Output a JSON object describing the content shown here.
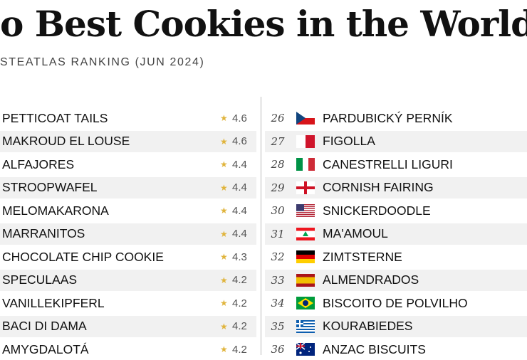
{
  "header": {
    "title": "o Best Cookies in the World",
    "subtitle": "STEATLAS RANKING (JUN 2024)"
  },
  "left": [
    {
      "name": "PETTICOAT TAILS",
      "rating": 4.6
    },
    {
      "name": "MAKROUD EL LOUSE",
      "rating": 4.6
    },
    {
      "name": "ALFAJORES",
      "rating": 4.4
    },
    {
      "name": "STROOPWAFEL",
      "rating": 4.4
    },
    {
      "name": "MELOMAKARONA",
      "rating": 4.4
    },
    {
      "name": "MARRANITOS",
      "rating": 4.4
    },
    {
      "name": "CHOCOLATE CHIP COOKIE",
      "rating": 4.3
    },
    {
      "name": "SPECULAAS",
      "rating": 4.2
    },
    {
      "name": "VANILLEKIPFERL",
      "rating": 4.2
    },
    {
      "name": "BACI DI DAMA",
      "rating": 4.2
    },
    {
      "name": "AMYGDALOTÁ",
      "rating": 4.2
    }
  ],
  "right": [
    {
      "rank": 26,
      "name": "PARDUBICKÝ PERNÍK"
    },
    {
      "rank": 27,
      "name": "FIGOLLA"
    },
    {
      "rank": 28,
      "name": "CANESTRELLI LIGURI"
    },
    {
      "rank": 29,
      "name": "CORNISH FAIRING"
    },
    {
      "rank": 30,
      "name": "SNICKERDOODLE"
    },
    {
      "rank": 31,
      "name": "MA'AMOUL"
    },
    {
      "rank": 32,
      "name": "ZIMTSTERNE"
    },
    {
      "rank": 33,
      "name": "ALMENDRADOS"
    },
    {
      "rank": 34,
      "name": "BISCOITO DE POLVILHO"
    },
    {
      "rank": 35,
      "name": "KOURABIEDES"
    },
    {
      "rank": 36,
      "name": "ANZAC BISCUITS"
    }
  ]
}
